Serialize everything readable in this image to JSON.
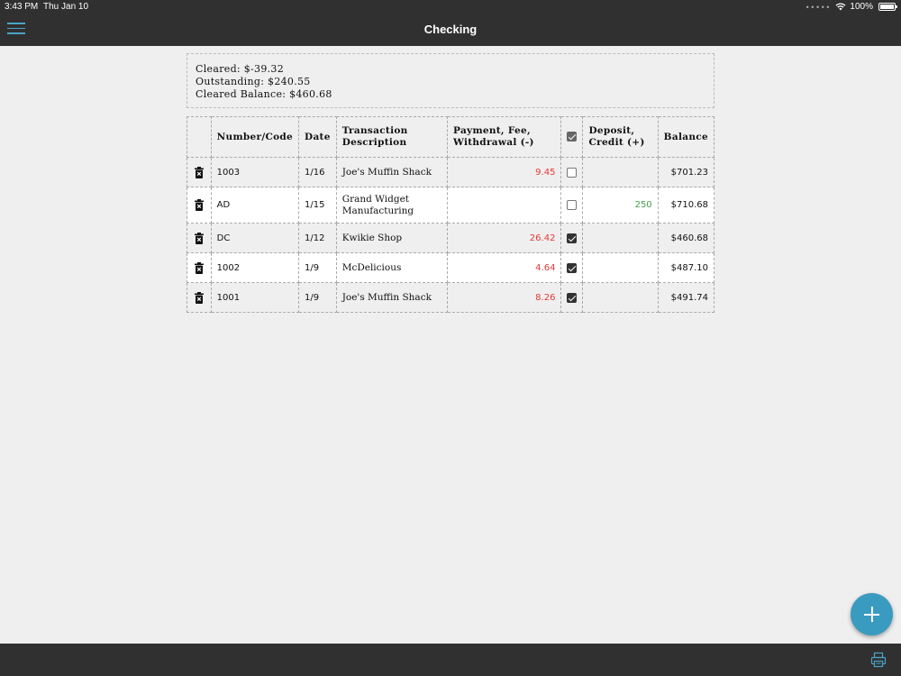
{
  "statusbar": {
    "time": "3:43 PM",
    "date": "Thu Jan 10",
    "battery": "100%"
  },
  "nav": {
    "title": "Checking",
    "accent": "#4aa3c8"
  },
  "summary": {
    "cleared": "Cleared: $-39.32",
    "outstanding": "Outstanding: $240.55",
    "cleared_balance": "Cleared Balance: $460.68"
  },
  "table": {
    "headers": {
      "number": "Number/Code",
      "date": "Date",
      "desc_line1": "Transaction",
      "desc_line2": "Description",
      "payment_line1": "Payment, Fee,",
      "payment_line2": "Withdrawal (-)",
      "deposit_line1": "Deposit,",
      "deposit_line2": "Credit (+)",
      "balance": "Balance"
    },
    "rows": [
      {
        "number": "1003",
        "date": "1/16",
        "desc": "Joe's Muffin Shack",
        "desc2": "",
        "payment": "9.45",
        "cleared": false,
        "deposit": "",
        "balance": "$701.23"
      },
      {
        "number": "AD",
        "date": "1/15",
        "desc": "Grand Widget",
        "desc2": "Manufacturing",
        "payment": "",
        "cleared": false,
        "deposit": "250",
        "balance": "$710.68"
      },
      {
        "number": "DC",
        "date": "1/12",
        "desc": "Kwikie Shop",
        "desc2": "",
        "payment": "26.42",
        "cleared": true,
        "deposit": "",
        "balance": "$460.68"
      },
      {
        "number": "1002",
        "date": "1/9",
        "desc": "McDelicious",
        "desc2": "",
        "payment": "4.64",
        "cleared": true,
        "deposit": "",
        "balance": "$487.10"
      },
      {
        "number": "1001",
        "date": "1/9",
        "desc": "Joe's Muffin Shack",
        "desc2": "",
        "payment": "8.26",
        "cleared": true,
        "deposit": "",
        "balance": "$491.74"
      }
    ]
  },
  "colors": {
    "payment": "#e53935",
    "deposit": "#43a047",
    "fab": "#3a9bc1",
    "bar": "#303030"
  },
  "icons": {
    "menu": "hamburger-icon",
    "delete": "trash-icon",
    "add": "plus-icon",
    "print": "printer-icon",
    "wifi": "wifi-icon",
    "battery": "battery-icon"
  }
}
